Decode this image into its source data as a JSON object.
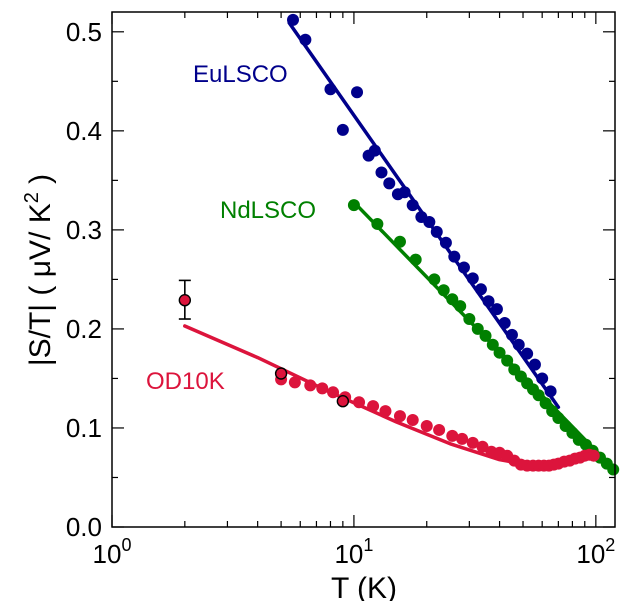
{
  "chart_data": {
    "type": "scatter",
    "xlabel": "T (K)",
    "ylabel": "|S/T| ( μV/ K",
    "ylabel_superscript": "2",
    "ylabel_close": " )",
    "x_scale": "log",
    "xlim": [
      1,
      120
    ],
    "ylim": [
      0,
      0.52
    ],
    "x_ticks": [
      {
        "value": 1,
        "base": "10",
        "exp": "0"
      },
      {
        "value": 10,
        "base": "10",
        "exp": "1"
      },
      {
        "value": 100,
        "base": "10",
        "exp": "2"
      }
    ],
    "y_ticks": [
      {
        "value": 0.0,
        "label": "0.0"
      },
      {
        "value": 0.1,
        "label": "0.1"
      },
      {
        "value": 0.2,
        "label": "0.2"
      },
      {
        "value": 0.3,
        "label": "0.3"
      },
      {
        "value": 0.4,
        "label": "0.4"
      },
      {
        "value": 0.5,
        "label": "0.5"
      }
    ],
    "grid": false,
    "series": [
      {
        "name": "EuLSCO",
        "color": "#00008b",
        "points": [
          [
            5.6,
            0.512
          ],
          [
            6.3,
            0.492
          ],
          [
            8.0,
            0.442
          ],
          [
            9.0,
            0.401
          ],
          [
            10.3,
            0.439
          ],
          [
            11.5,
            0.375
          ],
          [
            12.2,
            0.38
          ],
          [
            13.0,
            0.358
          ],
          [
            14.0,
            0.347
          ],
          [
            15.2,
            0.336
          ],
          [
            16.2,
            0.338
          ],
          [
            17.5,
            0.325
          ],
          [
            19.0,
            0.313
          ],
          [
            20.5,
            0.308
          ],
          [
            22.0,
            0.298
          ],
          [
            24.0,
            0.287
          ],
          [
            26.0,
            0.273
          ],
          [
            28.5,
            0.262
          ],
          [
            31.0,
            0.251
          ],
          [
            33.5,
            0.24
          ],
          [
            36.0,
            0.228
          ],
          [
            39.0,
            0.22
          ],
          [
            42.0,
            0.206
          ],
          [
            45.0,
            0.194
          ],
          [
            48.0,
            0.184
          ],
          [
            52.0,
            0.175
          ],
          [
            56.0,
            0.164
          ],
          [
            60.0,
            0.15
          ],
          [
            65.0,
            0.137
          ]
        ],
        "fit": [
          [
            5.4,
            0.509
          ],
          [
            70.0,
            0.121
          ]
        ]
      },
      {
        "name": "NdLSCO",
        "color": "#008000",
        "points": [
          [
            10.0,
            0.325
          ],
          [
            12.5,
            0.306
          ],
          [
            15.5,
            0.288
          ],
          [
            18.0,
            0.27
          ],
          [
            21.5,
            0.25
          ],
          [
            23.5,
            0.239
          ],
          [
            25.5,
            0.23
          ],
          [
            27.5,
            0.223
          ],
          [
            30.0,
            0.21
          ],
          [
            32.5,
            0.2
          ],
          [
            35.0,
            0.193
          ],
          [
            37.5,
            0.184
          ],
          [
            40.0,
            0.176
          ],
          [
            43.0,
            0.168
          ],
          [
            46.0,
            0.159
          ],
          [
            49.0,
            0.152
          ],
          [
            52.0,
            0.145
          ],
          [
            55.0,
            0.139
          ],
          [
            58.0,
            0.133
          ],
          [
            62.0,
            0.125
          ],
          [
            66.0,
            0.117
          ],
          [
            70.0,
            0.11
          ],
          [
            75.0,
            0.102
          ],
          [
            80.0,
            0.095
          ],
          [
            85.0,
            0.088
          ],
          [
            91.0,
            0.083
          ],
          [
            97.0,
            0.077
          ],
          [
            104.0,
            0.07
          ],
          [
            111.0,
            0.064
          ],
          [
            118.0,
            0.058
          ]
        ],
        "fit": [
          [
            10.0,
            0.328
          ],
          [
            120.0,
            0.057
          ]
        ]
      },
      {
        "name": "OD10K",
        "color": "#dc143c",
        "points": [
          [
            5.0,
            0.149
          ],
          [
            5.7,
            0.146
          ],
          [
            6.6,
            0.143
          ],
          [
            7.4,
            0.14
          ],
          [
            8.2,
            0.136
          ],
          [
            9.2,
            0.131
          ],
          [
            10.5,
            0.126
          ],
          [
            12.0,
            0.122
          ],
          [
            13.5,
            0.117
          ],
          [
            15.5,
            0.112
          ],
          [
            17.5,
            0.108
          ],
          [
            20.0,
            0.102
          ],
          [
            22.5,
            0.098
          ],
          [
            25.5,
            0.092
          ],
          [
            28.0,
            0.089
          ],
          [
            31.0,
            0.085
          ],
          [
            34.0,
            0.081
          ],
          [
            37.0,
            0.076
          ],
          [
            40.0,
            0.075
          ],
          [
            43.0,
            0.072
          ],
          [
            46.0,
            0.067
          ],
          [
            49.0,
            0.063
          ],
          [
            52.0,
            0.062
          ],
          [
            55.0,
            0.062
          ],
          [
            58.0,
            0.062
          ],
          [
            61.0,
            0.062
          ],
          [
            64.0,
            0.062
          ],
          [
            67.0,
            0.063
          ],
          [
            70.0,
            0.064
          ],
          [
            74.0,
            0.066
          ],
          [
            78.0,
            0.067
          ],
          [
            82.0,
            0.069
          ],
          [
            86.0,
            0.07
          ],
          [
            90.0,
            0.072
          ],
          [
            94.0,
            0.073
          ],
          [
            98.0,
            0.072
          ]
        ],
        "outlined_points": [
          [
            2.0,
            0.229
          ],
          [
            5.0,
            0.155
          ],
          [
            9.0,
            0.127
          ]
        ],
        "error_bars": [
          {
            "x": 2.0,
            "y": 0.229,
            "low": 0.21,
            "high": 0.249
          }
        ],
        "fit": [
          [
            2.0,
            0.203
          ],
          [
            4.0,
            0.171
          ],
          [
            8.0,
            0.136
          ],
          [
            15.0,
            0.106
          ],
          [
            25.0,
            0.084
          ],
          [
            40.0,
            0.068
          ],
          [
            55.0,
            0.062
          ],
          [
            70.0,
            0.064
          ],
          [
            90.0,
            0.072
          ],
          [
            100.0,
            0.075
          ]
        ]
      }
    ]
  }
}
